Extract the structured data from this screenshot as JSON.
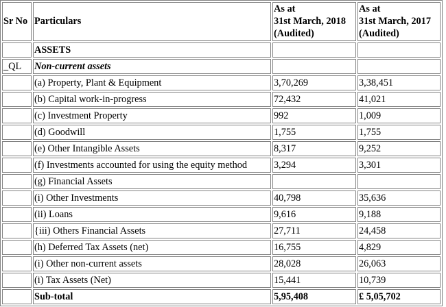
{
  "header": {
    "sr_no": "Sr No",
    "particulars": "Particulars",
    "col2018": {
      "line1": "As at",
      "line2": "31st March, 2018",
      "line3": "(Audited)"
    },
    "col2017": {
      "line1": "As at",
      "line2": "31st March, 2017",
      "line3": "(Audited)"
    }
  },
  "rows": [
    {
      "sr": "",
      "label": "ASSETS",
      "v2018": "",
      "v2017": ""
    },
    {
      "sr": "_QL",
      "label": "Non-current assets",
      "v2018": "",
      "v2017": ""
    },
    {
      "sr": "",
      "label": "(a) Property, Plant & Equipment",
      "v2018": "3,70,269",
      "v2017": "3,38,451"
    },
    {
      "sr": "",
      "label": "(b) Capital work-in-progress",
      "v2018": "72,432",
      "v2017": "41,021"
    },
    {
      "sr": "",
      "label": "(c) Investment Property",
      "v2018": "992",
      "v2017": "1,009"
    },
    {
      "sr": "",
      "label": "(d) Goodwill",
      "v2018": "1,755",
      "v2017": "1,755"
    },
    {
      "sr": "",
      "label": "(e) Other Intangible Assets",
      "v2018": "8,317",
      "v2017": "9,252"
    },
    {
      "sr": "",
      "label": "(f) Investments accounted for using the equity method",
      "v2018": "3,294",
      "v2017": "3,301"
    },
    {
      "sr": "",
      "label": "(g) Financial Assets",
      "v2018": "",
      "v2017": ""
    },
    {
      "sr": "",
      "label": "(i) Other Investments",
      "v2018": "40,798",
      "v2017": "35,636"
    },
    {
      "sr": "",
      "label": "(ii) Loans",
      "v2018": "9,616",
      "v2017": "9,188"
    },
    {
      "sr": "",
      "label": "{iii) Others Financial Assets",
      "v2018": "27,711",
      "v2017": "24,458"
    },
    {
      "sr": "",
      "label": "(h) Deferred Tax Assets (net)",
      "v2018": "16,755",
      "v2017": "4,829"
    },
    {
      "sr": "",
      "label": "(i) Other non-current assets",
      "v2018": "28,028",
      "v2017": "26,063"
    },
    {
      "sr": "",
      "label": "(i) Tax Assets (Net)",
      "v2018": "15,441",
      "v2017": "10,739"
    },
    {
      "sr": "",
      "label": "Sub-total",
      "v2018": "5,95,408",
      "v2017": "£ 5,05,702"
    }
  ]
}
